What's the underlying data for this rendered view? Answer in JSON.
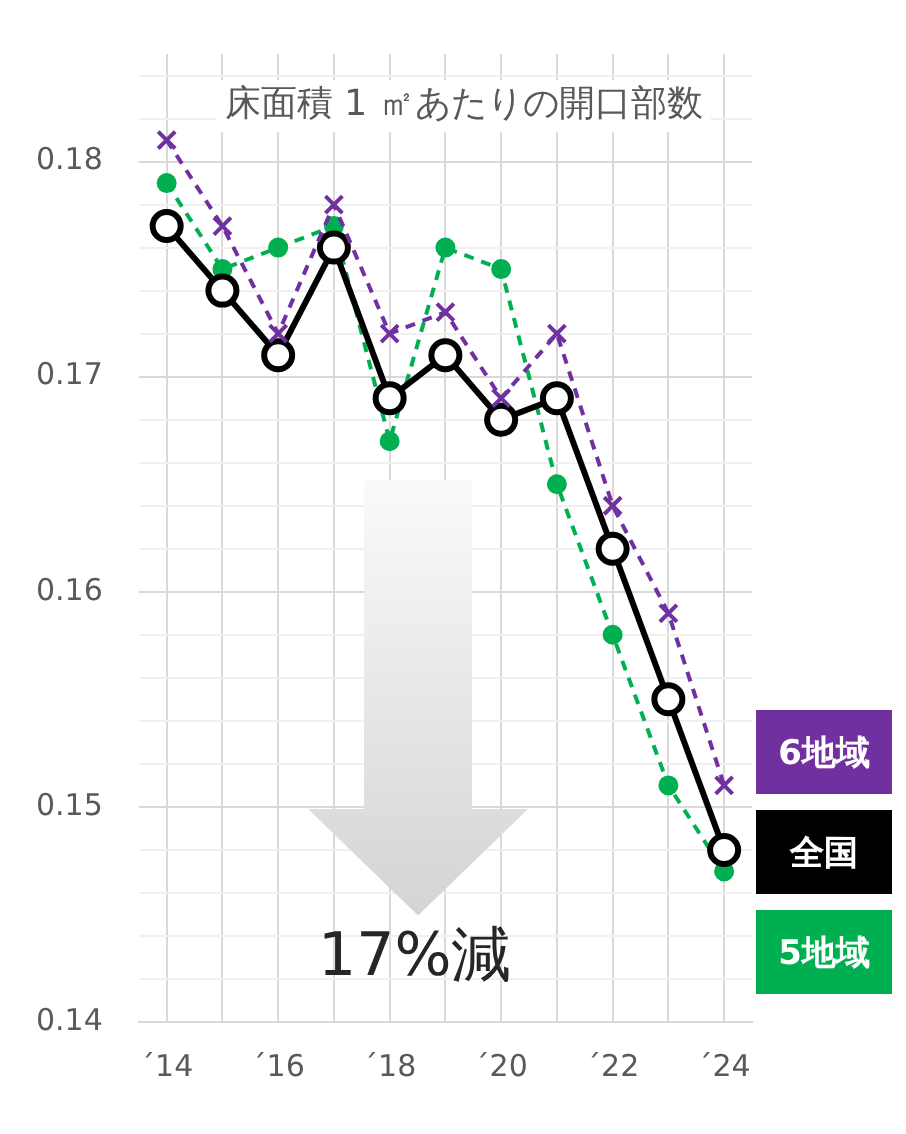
{
  "chart_data": {
    "type": "line",
    "title": "床面積 1 ㎡あたりの開口部数",
    "annotations": [
      "17%減"
    ],
    "categories": [
      "´14",
      null,
      "´16",
      null,
      "´18",
      null,
      "´20",
      null,
      "´22",
      null,
      "´24"
    ],
    "series": [
      {
        "name": "6地域",
        "color": "#7030a0",
        "marker": "cross",
        "line_style": "dashed",
        "values": [
          0.181,
          0.177,
          0.172,
          0.178,
          0.172,
          0.173,
          0.169,
          0.172,
          0.164,
          0.159,
          0.151
        ]
      },
      {
        "name": "全国",
        "color": "#000000",
        "marker": "circle",
        "line_style": "solid",
        "values": [
          0.177,
          0.174,
          0.171,
          0.176,
          0.169,
          0.171,
          0.168,
          0.169,
          0.162,
          0.155,
          0.148
        ]
      },
      {
        "name": "5地域",
        "color": "#00b050",
        "marker": "circle",
        "line_style": "dashed",
        "values": [
          0.179,
          0.175,
          0.176,
          0.177,
          0.167,
          0.176,
          0.175,
          0.165,
          0.158,
          0.151,
          0.147
        ]
      }
    ],
    "ylim": [
      0.14,
      0.185
    ],
    "yticks": [
      0.14,
      {
        "value": 0.142,
        "label": null
      },
      {
        "value": 0.144,
        "label": null
      },
      {
        "value": 0.146,
        "label": null
      },
      {
        "value": 0.148,
        "label": null
      },
      0.15,
      {
        "value": 0.152,
        "label": null
      },
      {
        "value": 0.154,
        "label": null
      },
      {
        "value": 0.156,
        "label": null
      },
      {
        "value": 0.158,
        "label": null
      },
      0.16,
      {
        "value": 0.162,
        "label": null
      },
      {
        "value": 0.164,
        "label": null
      },
      {
        "value": 0.166,
        "label": null
      },
      {
        "value": 0.168,
        "label": null
      },
      0.17,
      {
        "value": 0.172,
        "label": null
      },
      {
        "value": 0.174,
        "label": null
      },
      {
        "value": 0.176,
        "label": null
      },
      {
        "value": 0.178,
        "label": null
      },
      0.18,
      {
        "value": 0.182,
        "label": null
      },
      {
        "value": 0.184,
        "label": null
      }
    ],
    "grid": true,
    "legend": "right"
  }
}
